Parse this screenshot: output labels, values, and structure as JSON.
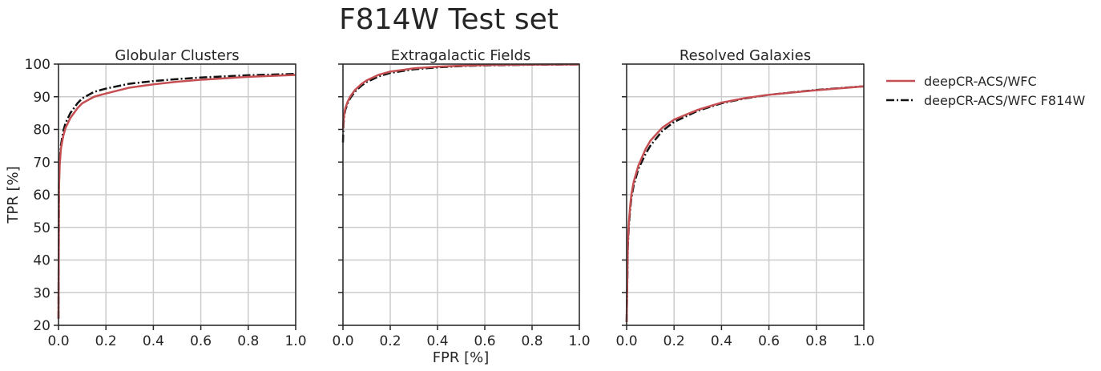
{
  "title": "F814W Test set",
  "chart_data": [
    {
      "type": "line",
      "title": "Globular Clusters",
      "xlabel": "",
      "ylabel": "TPR [%]",
      "xlim": [
        0,
        1
      ],
      "ylim": [
        20,
        100
      ],
      "xticks": [
        "0.0",
        "0.2",
        "0.4",
        "0.6",
        "0.8",
        "1.0"
      ],
      "yticks": [
        "20",
        "30",
        "40",
        "50",
        "60",
        "70",
        "80",
        "90",
        "100"
      ],
      "grid": true,
      "series": [
        {
          "name": "deepCR-ACS/WFC",
          "color": "#c44e52",
          "style": "solid",
          "x": [
            0.0,
            0.002,
            0.005,
            0.01,
            0.02,
            0.03,
            0.05,
            0.08,
            0.1,
            0.15,
            0.2,
            0.3,
            0.4,
            0.5,
            0.6,
            0.8,
            1.0
          ],
          "y": [
            22,
            62,
            69,
            74,
            78,
            80.5,
            83.5,
            86.5,
            88,
            90,
            91,
            92.8,
            93.8,
            94.6,
            95.2,
            96.1,
            96.7
          ]
        },
        {
          "name": "deepCR-ACS/WFC F814W",
          "color": "#111111",
          "style": "dashdot",
          "x": [
            0.0,
            0.002,
            0.005,
            0.01,
            0.02,
            0.03,
            0.05,
            0.08,
            0.1,
            0.15,
            0.2,
            0.3,
            0.4,
            0.5,
            0.6,
            0.8,
            1.0
          ],
          "y": [
            22,
            63,
            70,
            75,
            79.5,
            82,
            85,
            88,
            89.5,
            91.5,
            92.5,
            94,
            94.8,
            95.4,
            95.9,
            96.6,
            97.0
          ]
        }
      ]
    },
    {
      "type": "line",
      "title": "Extragalactic Fields",
      "xlabel": "FPR [%]",
      "ylabel": "",
      "xlim": [
        0,
        1
      ],
      "ylim": [
        20,
        100
      ],
      "xticks": [
        "0.0",
        "0.2",
        "0.4",
        "0.6",
        "0.8",
        "1.0"
      ],
      "grid": true,
      "series": [
        {
          "name": "deepCR-ACS/WFC",
          "color": "#c44e52",
          "style": "solid",
          "x": [
            0.0,
            0.002,
            0.005,
            0.01,
            0.02,
            0.03,
            0.05,
            0.08,
            0.1,
            0.15,
            0.2,
            0.3,
            0.4,
            0.5,
            0.6,
            0.8,
            1.0
          ],
          "y": [
            80,
            82.5,
            84.5,
            86.5,
            88.5,
            90,
            92,
            94,
            95,
            96.7,
            97.7,
            98.7,
            99.2,
            99.5,
            99.7,
            99.85,
            99.9
          ]
        },
        {
          "name": "deepCR-ACS/WFC F814W",
          "color": "#111111",
          "style": "dashdot",
          "x": [
            0.0,
            0.002,
            0.005,
            0.01,
            0.02,
            0.03,
            0.05,
            0.08,
            0.1,
            0.15,
            0.2,
            0.3,
            0.4,
            0.5,
            0.6,
            0.8,
            1.0
          ],
          "y": [
            76,
            81.5,
            84,
            86,
            88,
            89.5,
            91.5,
            93.5,
            94.5,
            96.2,
            97.3,
            98.4,
            99.0,
            99.4,
            99.6,
            99.8,
            99.9
          ]
        }
      ]
    },
    {
      "type": "line",
      "title": "Resolved Galaxies",
      "xlabel": "",
      "ylabel": "",
      "xlim": [
        0,
        1
      ],
      "ylim": [
        20,
        100
      ],
      "xticks": [
        "0.0",
        "0.2",
        "0.4",
        "0.6",
        "0.8",
        "1.0"
      ],
      "grid": true,
      "series": [
        {
          "name": "deepCR-ACS/WFC",
          "color": "#c44e52",
          "style": "solid",
          "x": [
            0.0,
            0.003,
            0.005,
            0.01,
            0.015,
            0.02,
            0.03,
            0.05,
            0.08,
            0.1,
            0.15,
            0.2,
            0.3,
            0.4,
            0.5,
            0.6,
            0.8,
            1.0
          ],
          "y": [
            21,
            35,
            45,
            52,
            56.5,
            60,
            64,
            69,
            74,
            76.5,
            80.5,
            83,
            86,
            88.2,
            89.6,
            90.6,
            92.0,
            93.2
          ]
        },
        {
          "name": "deepCR-ACS/WFC F814W",
          "color": "#111111",
          "style": "dashdot",
          "x": [
            0.0,
            0.003,
            0.005,
            0.01,
            0.015,
            0.02,
            0.03,
            0.05,
            0.08,
            0.1,
            0.15,
            0.2,
            0.3,
            0.4,
            0.5,
            0.6,
            0.8,
            1.0
          ],
          "y": [
            21,
            34,
            44,
            51,
            55.5,
            59,
            63,
            68,
            72.5,
            75,
            79.5,
            82.3,
            85.7,
            88.0,
            89.5,
            90.6,
            92.1,
            93.2
          ]
        }
      ]
    }
  ],
  "legend": {
    "position": "outside-right",
    "items": [
      {
        "label": "deepCR-ACS/WFC",
        "color": "#c44e52",
        "style": "solid"
      },
      {
        "label": "deepCR-ACS/WFC F814W",
        "color": "#111111",
        "style": "dashdot"
      }
    ]
  }
}
